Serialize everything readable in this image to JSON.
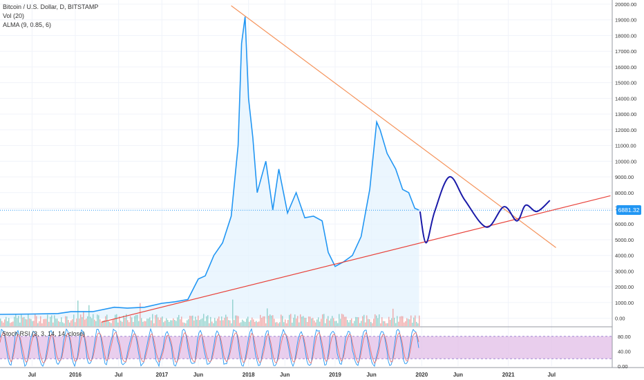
{
  "legend": {
    "title": "Bitcoin / U.S. Dollar, D, BITSTAMP",
    "vol": "Vol (20)",
    "alma": "ALMA (9, 0.85, 6)"
  },
  "stoch": {
    "label": "Stoch RSI (3, 3, 14, 14, close)"
  },
  "price_badge": {
    "value": "6881.32",
    "color": "#2196F3"
  },
  "colors": {
    "price": "#2196F3",
    "area_fill": "#e3f2fd",
    "projection": "#1a1aa8",
    "resistance": "#f5935b",
    "support": "#e8423a",
    "volume_red": "#ef9a9a",
    "volume_green": "#80cbc4",
    "stoch_band": "#e1bee7",
    "stoch_k": "#2196F3",
    "stoch_d": "#e57373",
    "hline": "#2196F3"
  },
  "chart_data": {
    "type": "line",
    "title": "Bitcoin / U.S. Dollar, D, BITSTAMP",
    "y_axis": {
      "ticks": [
        "20000.00",
        "19000.00",
        "18000.00",
        "17000.00",
        "16000.00",
        "15000.00",
        "14000.00",
        "13000.00",
        "12000.00",
        "11000.00",
        "10000.00",
        "9000.00",
        "8000.00",
        "7000.00",
        "6000.00",
        "5000.00",
        "4000.00",
        "3000.00",
        "2000.00",
        "1000.00",
        "0.00"
      ],
      "range": [
        -500,
        20000
      ]
    },
    "x_axis": {
      "ticks": [
        {
          "label": "Jul",
          "date": 2015.5
        },
        {
          "label": "2016",
          "date": 2016.0
        },
        {
          "label": "Jul",
          "date": 2016.5
        },
        {
          "label": "2017",
          "date": 2017.0
        },
        {
          "label": "Jun",
          "date": 2017.42
        },
        {
          "label": "2018",
          "date": 2018.0
        },
        {
          "label": "Jun",
          "date": 2018.42
        },
        {
          "label": "2019",
          "date": 2019.0
        },
        {
          "label": "Jun",
          "date": 2019.42
        },
        {
          "label": "2020",
          "date": 2020.0
        },
        {
          "label": "Jun",
          "date": 2020.42
        },
        {
          "label": "2021",
          "date": 2021.0
        },
        {
          "label": "Jul",
          "date": 2021.5
        }
      ],
      "range": [
        2015.13,
        2022.2
      ]
    },
    "series": [
      {
        "key": "price",
        "points": [
          [
            2015.13,
            250
          ],
          [
            2015.5,
            270
          ],
          [
            2015.8,
            300
          ],
          [
            2015.95,
            420
          ],
          [
            2016.2,
            420
          ],
          [
            2016.45,
            700
          ],
          [
            2016.6,
            650
          ],
          [
            2016.8,
            700
          ],
          [
            2017.0,
            950
          ],
          [
            2017.15,
            1050
          ],
          [
            2017.3,
            1200
          ],
          [
            2017.42,
            2500
          ],
          [
            2017.5,
            2700
          ],
          [
            2017.6,
            4000
          ],
          [
            2017.7,
            4800
          ],
          [
            2017.8,
            6500
          ],
          [
            2017.88,
            11000
          ],
          [
            2017.92,
            17500
          ],
          [
            2017.96,
            19200
          ],
          [
            2018.0,
            14000
          ],
          [
            2018.05,
            11500
          ],
          [
            2018.1,
            8000
          ],
          [
            2018.2,
            10000
          ],
          [
            2018.28,
            6900
          ],
          [
            2018.35,
            9500
          ],
          [
            2018.45,
            6700
          ],
          [
            2018.55,
            8000
          ],
          [
            2018.65,
            6400
          ],
          [
            2018.75,
            6500
          ],
          [
            2018.85,
            6200
          ],
          [
            2018.92,
            4200
          ],
          [
            2019.0,
            3300
          ],
          [
            2019.1,
            3600
          ],
          [
            2019.2,
            4000
          ],
          [
            2019.3,
            5200
          ],
          [
            2019.4,
            8200
          ],
          [
            2019.48,
            12500
          ],
          [
            2019.52,
            12000
          ],
          [
            2019.6,
            10500
          ],
          [
            2019.7,
            9500
          ],
          [
            2019.78,
            8200
          ],
          [
            2019.85,
            8000
          ],
          [
            2019.92,
            7000
          ],
          [
            2019.97,
            6881
          ]
        ]
      },
      {
        "key": "projection",
        "points": [
          [
            2019.98,
            6800
          ],
          [
            2020.05,
            4800
          ],
          [
            2020.15,
            6800
          ],
          [
            2020.32,
            9000
          ],
          [
            2020.5,
            7500
          ],
          [
            2020.75,
            5800
          ],
          [
            2020.95,
            7100
          ],
          [
            2021.1,
            6200
          ],
          [
            2021.2,
            7200
          ],
          [
            2021.33,
            6800
          ],
          [
            2021.48,
            7500
          ]
        ]
      },
      {
        "key": "resistance",
        "points": [
          [
            2017.8,
            19900
          ],
          [
            2021.55,
            4500
          ]
        ]
      },
      {
        "key": "support",
        "points": [
          [
            2016.3,
            -250
          ],
          [
            2022.18,
            7800
          ]
        ]
      }
    ],
    "current_price": 6881.32,
    "stoch_bands": [
      20,
      80
    ],
    "stoch_ticks": [
      "80.00",
      "40.00",
      "0.00"
    ]
  }
}
